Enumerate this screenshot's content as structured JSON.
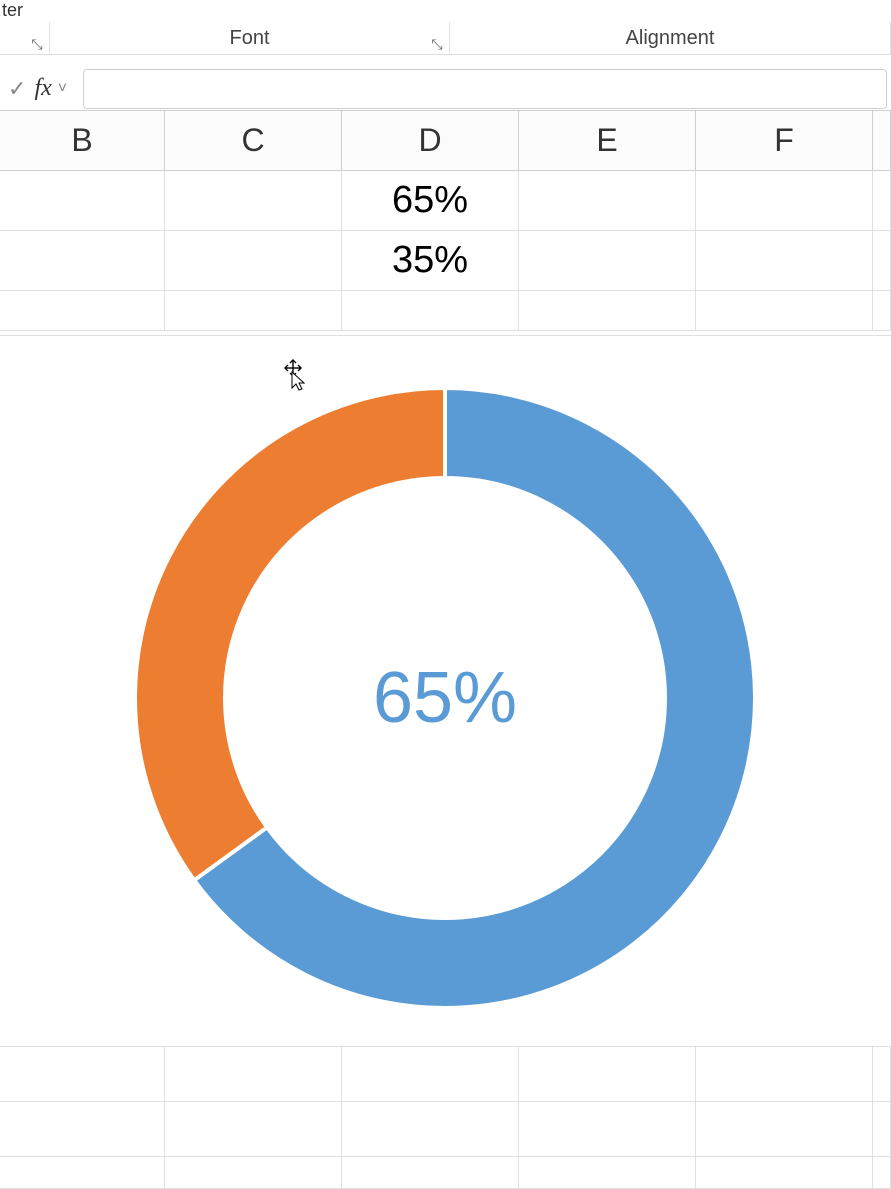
{
  "ribbon": {
    "painter_fragment": "ter",
    "groups": {
      "font_label": "Font",
      "alignment_label": "Alignment"
    },
    "launcher_glyph": "⤡"
  },
  "formula_bar": {
    "check_glyph": "✓",
    "fx_label": "fx",
    "dropdown_glyph": "˅",
    "value": ""
  },
  "columns": {
    "b": "B",
    "c": "C",
    "d": "D",
    "e": "E",
    "f": "F"
  },
  "cells": {
    "d1": "65%",
    "d2": "35%"
  },
  "chart": {
    "type": "donut",
    "slices": [
      {
        "label": "Blue",
        "value": 65,
        "color": "#5b9bd5"
      },
      {
        "label": "Orange",
        "value": 35,
        "color": "#ed7d31"
      }
    ],
    "start_angle_deg": 0,
    "direction": "clockwise",
    "outer_radius": 310,
    "inner_radius": 220,
    "gap_color": "#ffffff",
    "gap_width": 4,
    "background_color": "#ffffff",
    "center_label": {
      "text": "65%",
      "color": "#5b9bd5",
      "font_size": 72,
      "font_family": "Arial"
    }
  },
  "cursor": {
    "type": "move",
    "glyph": "✥",
    "pointer": "↖"
  }
}
